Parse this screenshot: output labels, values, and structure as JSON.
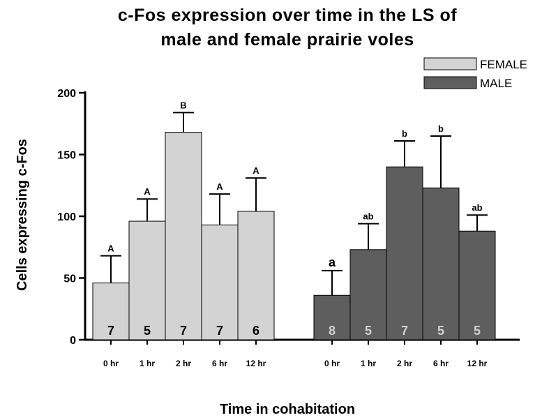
{
  "chart_data": {
    "type": "bar",
    "title_line1": "c-Fos expression over time in the LS of",
    "title_line2": "male and female prairie voles",
    "xlabel": "Time in cohabitation",
    "ylabel": "Cells expressing c-Fos",
    "ylim": [
      0,
      200
    ],
    "yticks": [
      0,
      50,
      100,
      150,
      200
    ],
    "legend_placement": "top-right",
    "grid": false,
    "series": [
      {
        "name": "FEMALE",
        "color": "#d3d3d3",
        "categories": [
          "0 hr",
          "1 hr",
          "2 hr",
          "6 hr",
          "12 hr"
        ],
        "values": [
          46,
          96,
          168,
          93,
          104
        ],
        "error": [
          22,
          18,
          16,
          25,
          27
        ],
        "significance": [
          "A",
          "A",
          "B",
          "A",
          "A"
        ],
        "n": [
          "7",
          "5",
          "7",
          "7",
          "6"
        ],
        "n_color": "#000000"
      },
      {
        "name": "MALE",
        "color": "#5e5e5e",
        "categories": [
          "0 hr",
          "1 hr",
          "2 hr",
          "6 hr",
          "12 hr"
        ],
        "values": [
          36,
          73,
          140,
          123,
          88
        ],
        "error": [
          20,
          21,
          21,
          42,
          13
        ],
        "significance": [
          "a",
          "ab",
          "b",
          "b",
          "ab"
        ],
        "n": [
          "8",
          "5",
          "7",
          "5",
          "5"
        ],
        "n_color": "#d0d0d0"
      }
    ]
  }
}
